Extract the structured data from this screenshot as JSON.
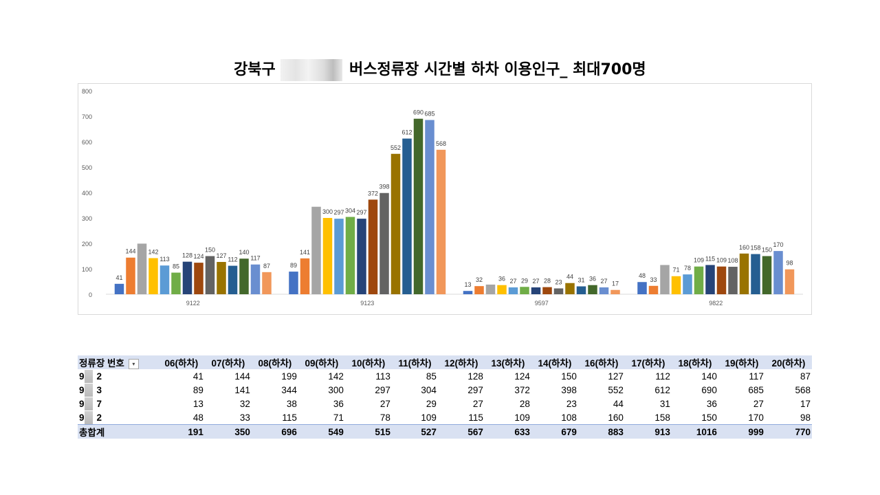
{
  "title": {
    "left": "강북구",
    "right": "버스정류장 시간별 하차 이용인구_ 최대700명"
  },
  "table": {
    "row_header": "정류장 번호",
    "filter_icon": "dropdown-filter-icon",
    "columns": [
      "06(하차)",
      "07(하차)",
      "08(하차)",
      "09(하차)",
      "10(하차)",
      "11(하차)",
      "12(하차)",
      "13(하차)",
      "14(하차)",
      "16(하차)",
      "17(하차)",
      "18(하차)",
      "19(하차)",
      "20(하차)"
    ],
    "rows": [
      {
        "label_a": "9",
        "label_b": "2",
        "values": [
          41,
          144,
          199,
          142,
          113,
          85,
          128,
          124,
          150,
          127,
          112,
          140,
          117,
          87
        ]
      },
      {
        "label_a": "9",
        "label_b": "3",
        "values": [
          89,
          141,
          344,
          300,
          297,
          304,
          297,
          372,
          398,
          552,
          612,
          690,
          685,
          568
        ]
      },
      {
        "label_a": "9",
        "label_b": "7",
        "values": [
          13,
          32,
          38,
          36,
          27,
          29,
          27,
          28,
          23,
          44,
          31,
          36,
          27,
          17
        ]
      },
      {
        "label_a": "9",
        "label_b": "2",
        "values": [
          48,
          33,
          115,
          71,
          78,
          109,
          115,
          109,
          108,
          160,
          158,
          150,
          170,
          98
        ]
      }
    ],
    "total_label": "총합계",
    "totals": [
      191,
      350,
      696,
      549,
      515,
      527,
      567,
      633,
      679,
      883,
      913,
      1016,
      999,
      770
    ]
  },
  "chart_data": {
    "type": "bar",
    "ylim": [
      0,
      800
    ],
    "yticks": [
      "0",
      "100",
      "200",
      "300",
      "400",
      "500",
      "600",
      "700",
      "800"
    ],
    "categories": [
      "9122",
      "9123",
      "9597",
      "9822"
    ],
    "series_colors": [
      "#4472c4",
      "#ed7d31",
      "#a5a5a5",
      "#ffc000",
      "#5b9bd5",
      "#70ad47",
      "#264478",
      "#9e480e",
      "#636363",
      "#997300",
      "#255e91",
      "#43682b",
      "#698ed0",
      "#f1975a"
    ],
    "series": [
      {
        "values": [
          41,
          89,
          13,
          48
        ]
      },
      {
        "values": [
          144,
          141,
          32,
          33
        ]
      },
      {
        "values": [
          199,
          344,
          38,
          115
        ]
      },
      {
        "values": [
          142,
          300,
          36,
          71
        ]
      },
      {
        "values": [
          113,
          297,
          27,
          78
        ]
      },
      {
        "values": [
          85,
          304,
          29,
          109
        ]
      },
      {
        "values": [
          128,
          297,
          27,
          115
        ]
      },
      {
        "values": [
          124,
          372,
          28,
          109
        ]
      },
      {
        "values": [
          150,
          398,
          23,
          108
        ]
      },
      {
        "values": [
          127,
          552,
          44,
          160
        ]
      },
      {
        "values": [
          112,
          612,
          31,
          158
        ]
      },
      {
        "values": [
          140,
          690,
          36,
          150
        ]
      },
      {
        "values": [
          117,
          685,
          27,
          170
        ]
      },
      {
        "values": [
          87,
          568,
          17,
          98
        ]
      }
    ],
    "labeled": [
      [
        true,
        true,
        false,
        true,
        true,
        true,
        true,
        true,
        true,
        true,
        true,
        true,
        true,
        true
      ],
      [
        true,
        true,
        false,
        true,
        true,
        true,
        true,
        true,
        true,
        true,
        true,
        true,
        true,
        true
      ],
      [
        true,
        true,
        false,
        true,
        true,
        true,
        true,
        true,
        true,
        true,
        true,
        true,
        true,
        true
      ],
      [
        true,
        true,
        false,
        true,
        true,
        true,
        true,
        true,
        true,
        true,
        true,
        true,
        true,
        true
      ]
    ],
    "grid": false,
    "legend": "none"
  }
}
